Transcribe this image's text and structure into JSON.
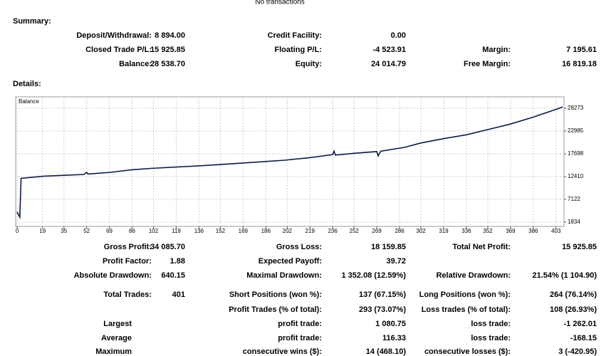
{
  "header": {
    "text": "No transactions"
  },
  "summary_title": "Summary:",
  "summary": [
    [
      {
        "label": "Deposit/Withdrawal:",
        "value": "8 894.00"
      },
      {
        "label": "Credit Facility:",
        "value": "0.00"
      },
      null
    ],
    [
      {
        "label": "Closed Trade P/L:",
        "value": "15 925.85"
      },
      {
        "label": "Floating P/L:",
        "value": "-4 523.91"
      },
      {
        "label": "Margin:",
        "value": "7 195.61"
      }
    ],
    [
      {
        "label": "Balance:",
        "value": "28 538.70"
      },
      {
        "label": "Equity:",
        "value": "24 014.79"
      },
      {
        "label": "Free Margin:",
        "value": "16 819.18"
      }
    ]
  ],
  "details_title": "Details:",
  "chart_data": {
    "type": "line",
    "series": [
      {
        "name": "Balance",
        "color": "#0b1a4e",
        "x": [
          0,
          2,
          3,
          20,
          50,
          52,
          53,
          70,
          86,
          100,
          136,
          152,
          186,
          200,
          219,
          236,
          237,
          238,
          252,
          269,
          270,
          272,
          290,
          302,
          319,
          336,
          352,
          369,
          386,
          403,
          408
        ],
        "values": [
          4200,
          3000,
          12000,
          12500,
          12900,
          13400,
          13000,
          13400,
          14000,
          14300,
          14900,
          15200,
          15900,
          16200,
          16800,
          17500,
          18300,
          17400,
          17800,
          18200,
          17200,
          18300,
          19200,
          20200,
          21200,
          22100,
          23300,
          24600,
          26200,
          28000,
          28538
        ]
      }
    ],
    "xlim": [
      0,
      409
    ],
    "xticks": [
      0,
      19,
      35,
      52,
      69,
      86,
      102,
      119,
      136,
      152,
      169,
      186,
      202,
      219,
      236,
      252,
      269,
      286,
      302,
      319,
      336,
      352,
      369,
      386,
      403
    ],
    "ylim": [
      850,
      30900
    ],
    "yticks": [
      1834,
      7122,
      12410,
      17698,
      22985,
      28273
    ],
    "grid": true
  },
  "stats": [
    [
      {
        "label": "Gross Profit:",
        "value": "34 085.70"
      },
      {
        "label": "Gross Loss:",
        "value": "18 159.85"
      },
      {
        "label": "Total Net Profit:",
        "value": "15 925.85"
      }
    ],
    [
      {
        "label": "Profit Factor:",
        "value": "1.88"
      },
      {
        "label": "Expected Payoff:",
        "value": "39.72"
      },
      null
    ],
    [
      {
        "label": "Absolute Drawdown:",
        "value": "640.15"
      },
      {
        "label": "Maximal Drawdown:",
        "value": "1 352.08 (12.59%)"
      },
      {
        "label": "Relative Drawdown:",
        "value": "21.54% (1 104.90)"
      }
    ],
    [
      {
        "label": "Total Trades:",
        "value": "401"
      },
      {
        "label": "Short Positions (won %):",
        "value": "137 (67.15%)"
      },
      {
        "label": "Long Positions (won %):",
        "value": "264 (76.14%)"
      }
    ],
    [
      null,
      {
        "label": "Profit Trades (% of total):",
        "value": "293 (73.07%)"
      },
      {
        "label": "Loss trades (% of total):",
        "value": "108 (26.93%)"
      }
    ],
    [
      {
        "label": "Largest"
      },
      {
        "label": "profit trade:",
        "value": "1 080.75"
      },
      {
        "label": "loss trade:",
        "value": "-1 262.01"
      }
    ],
    [
      {
        "label": "Average"
      },
      {
        "label": "profit trade:",
        "value": "116.33"
      },
      {
        "label": "loss trade:",
        "value": "-168.15"
      }
    ],
    [
      {
        "label": "Maximum"
      },
      {
        "label": "consecutive wins ($):",
        "value": "14 (468.10)"
      },
      {
        "label": "consecutive losses ($):",
        "value": "3 (-420.95)"
      }
    ]
  ]
}
